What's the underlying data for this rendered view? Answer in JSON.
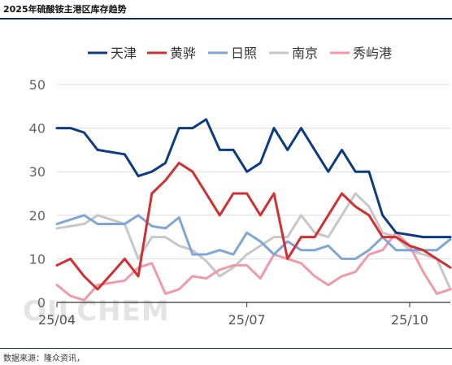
{
  "header": {
    "title": "2025年硫酸铵主港区库存趋势"
  },
  "footer": {
    "source": "数据来源：隆众资讯，"
  },
  "watermark": "OILCHEM",
  "chart_data": {
    "type": "line",
    "title": "2025年硫酸铵主港区库存趋势",
    "xlabel": "",
    "ylabel": "",
    "ylim": [
      0,
      50
    ],
    "yticks": [
      0,
      10,
      20,
      30,
      40,
      50
    ],
    "xticks": [
      "25/04",
      "25/07",
      "25/10"
    ],
    "xtick_index": [
      0,
      14,
      26
    ],
    "grid": "horizontal",
    "legend_position": "top",
    "series": [
      {
        "name": "天津",
        "color": "#0d3a84",
        "values": [
          40,
          40,
          39,
          35,
          34.5,
          34,
          29,
          30,
          32,
          40,
          40,
          42,
          35,
          35,
          30,
          32,
          40,
          35,
          40,
          35,
          30,
          35,
          30,
          30,
          20,
          16,
          15.5,
          15,
          15,
          15
        ]
      },
      {
        "name": "黄骅",
        "color": "#d03030",
        "values": [
          8.5,
          10,
          6,
          3,
          6.5,
          10,
          6,
          25,
          28,
          32,
          30,
          25,
          20,
          25,
          25,
          20,
          25,
          10,
          15,
          15,
          20,
          25,
          22,
          20,
          15,
          15,
          13,
          12,
          10,
          8
        ]
      },
      {
        "name": "日照",
        "color": "#7fa6d6",
        "values": [
          18,
          19,
          20,
          18,
          18,
          18,
          20,
          17.5,
          17,
          19.5,
          11,
          11,
          12,
          11,
          16,
          14,
          11,
          14,
          12,
          12,
          13,
          10,
          10,
          12,
          15,
          12,
          12,
          12,
          12,
          14.5
        ]
      },
      {
        "name": "南京",
        "color": "#c7c7c7",
        "values": [
          17,
          17.5,
          18,
          20,
          19,
          18,
          10,
          15,
          15,
          13,
          12,
          9.5,
          6,
          8,
          11,
          13,
          15,
          15,
          20,
          16,
          15,
          20,
          25,
          22,
          16,
          15,
          12,
          11,
          10,
          3
        ]
      },
      {
        "name": "秀屿港",
        "color": "#f09aa8",
        "values": [
          4,
          1.5,
          0.5,
          4,
          4.5,
          5,
          8,
          9,
          2,
          3,
          6,
          5.5,
          7.5,
          8.5,
          8.5,
          5.5,
          11,
          10,
          9,
          6,
          4,
          6,
          7,
          11,
          12,
          16,
          13,
          7,
          2,
          3
        ]
      }
    ]
  }
}
